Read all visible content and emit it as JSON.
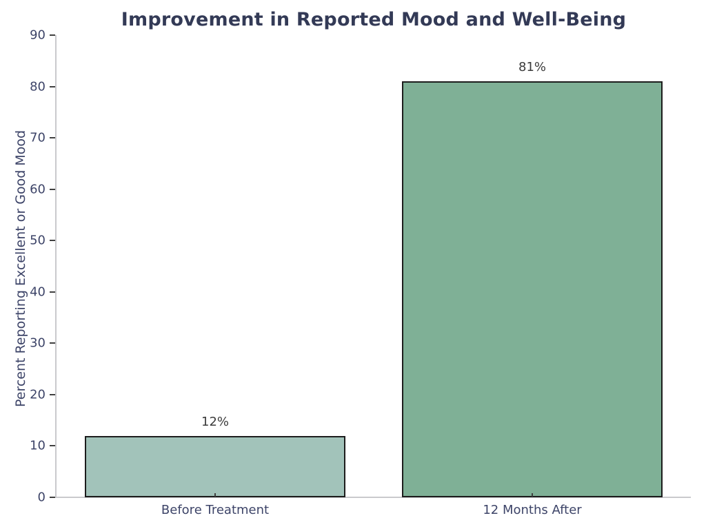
{
  "chart_data": {
    "type": "bar",
    "title": "Improvement in Reported Mood and Well-Being",
    "xlabel": "",
    "ylabel": "Percent Reporting Excellent or Good Mood",
    "categories": [
      "Before Treatment",
      "12 Months After"
    ],
    "values": [
      12,
      81
    ],
    "value_labels": [
      "12%",
      "81%"
    ],
    "bar_colors": [
      "#a2c3ba",
      "#7fb096"
    ],
    "bar_edge_color": "#1c1c1c",
    "ylim": [
      0,
      90
    ],
    "yticks": [
      0,
      10,
      20,
      30,
      40,
      50,
      60,
      70,
      80,
      90
    ],
    "grid": false,
    "legend": null,
    "colors": {
      "background": "#ffffff",
      "title": "#333a56",
      "axis_text": "#3d4468",
      "value_text": "#3a3a3a",
      "spine": "#c9c9cc",
      "tick": "#3f3f3f"
    }
  }
}
